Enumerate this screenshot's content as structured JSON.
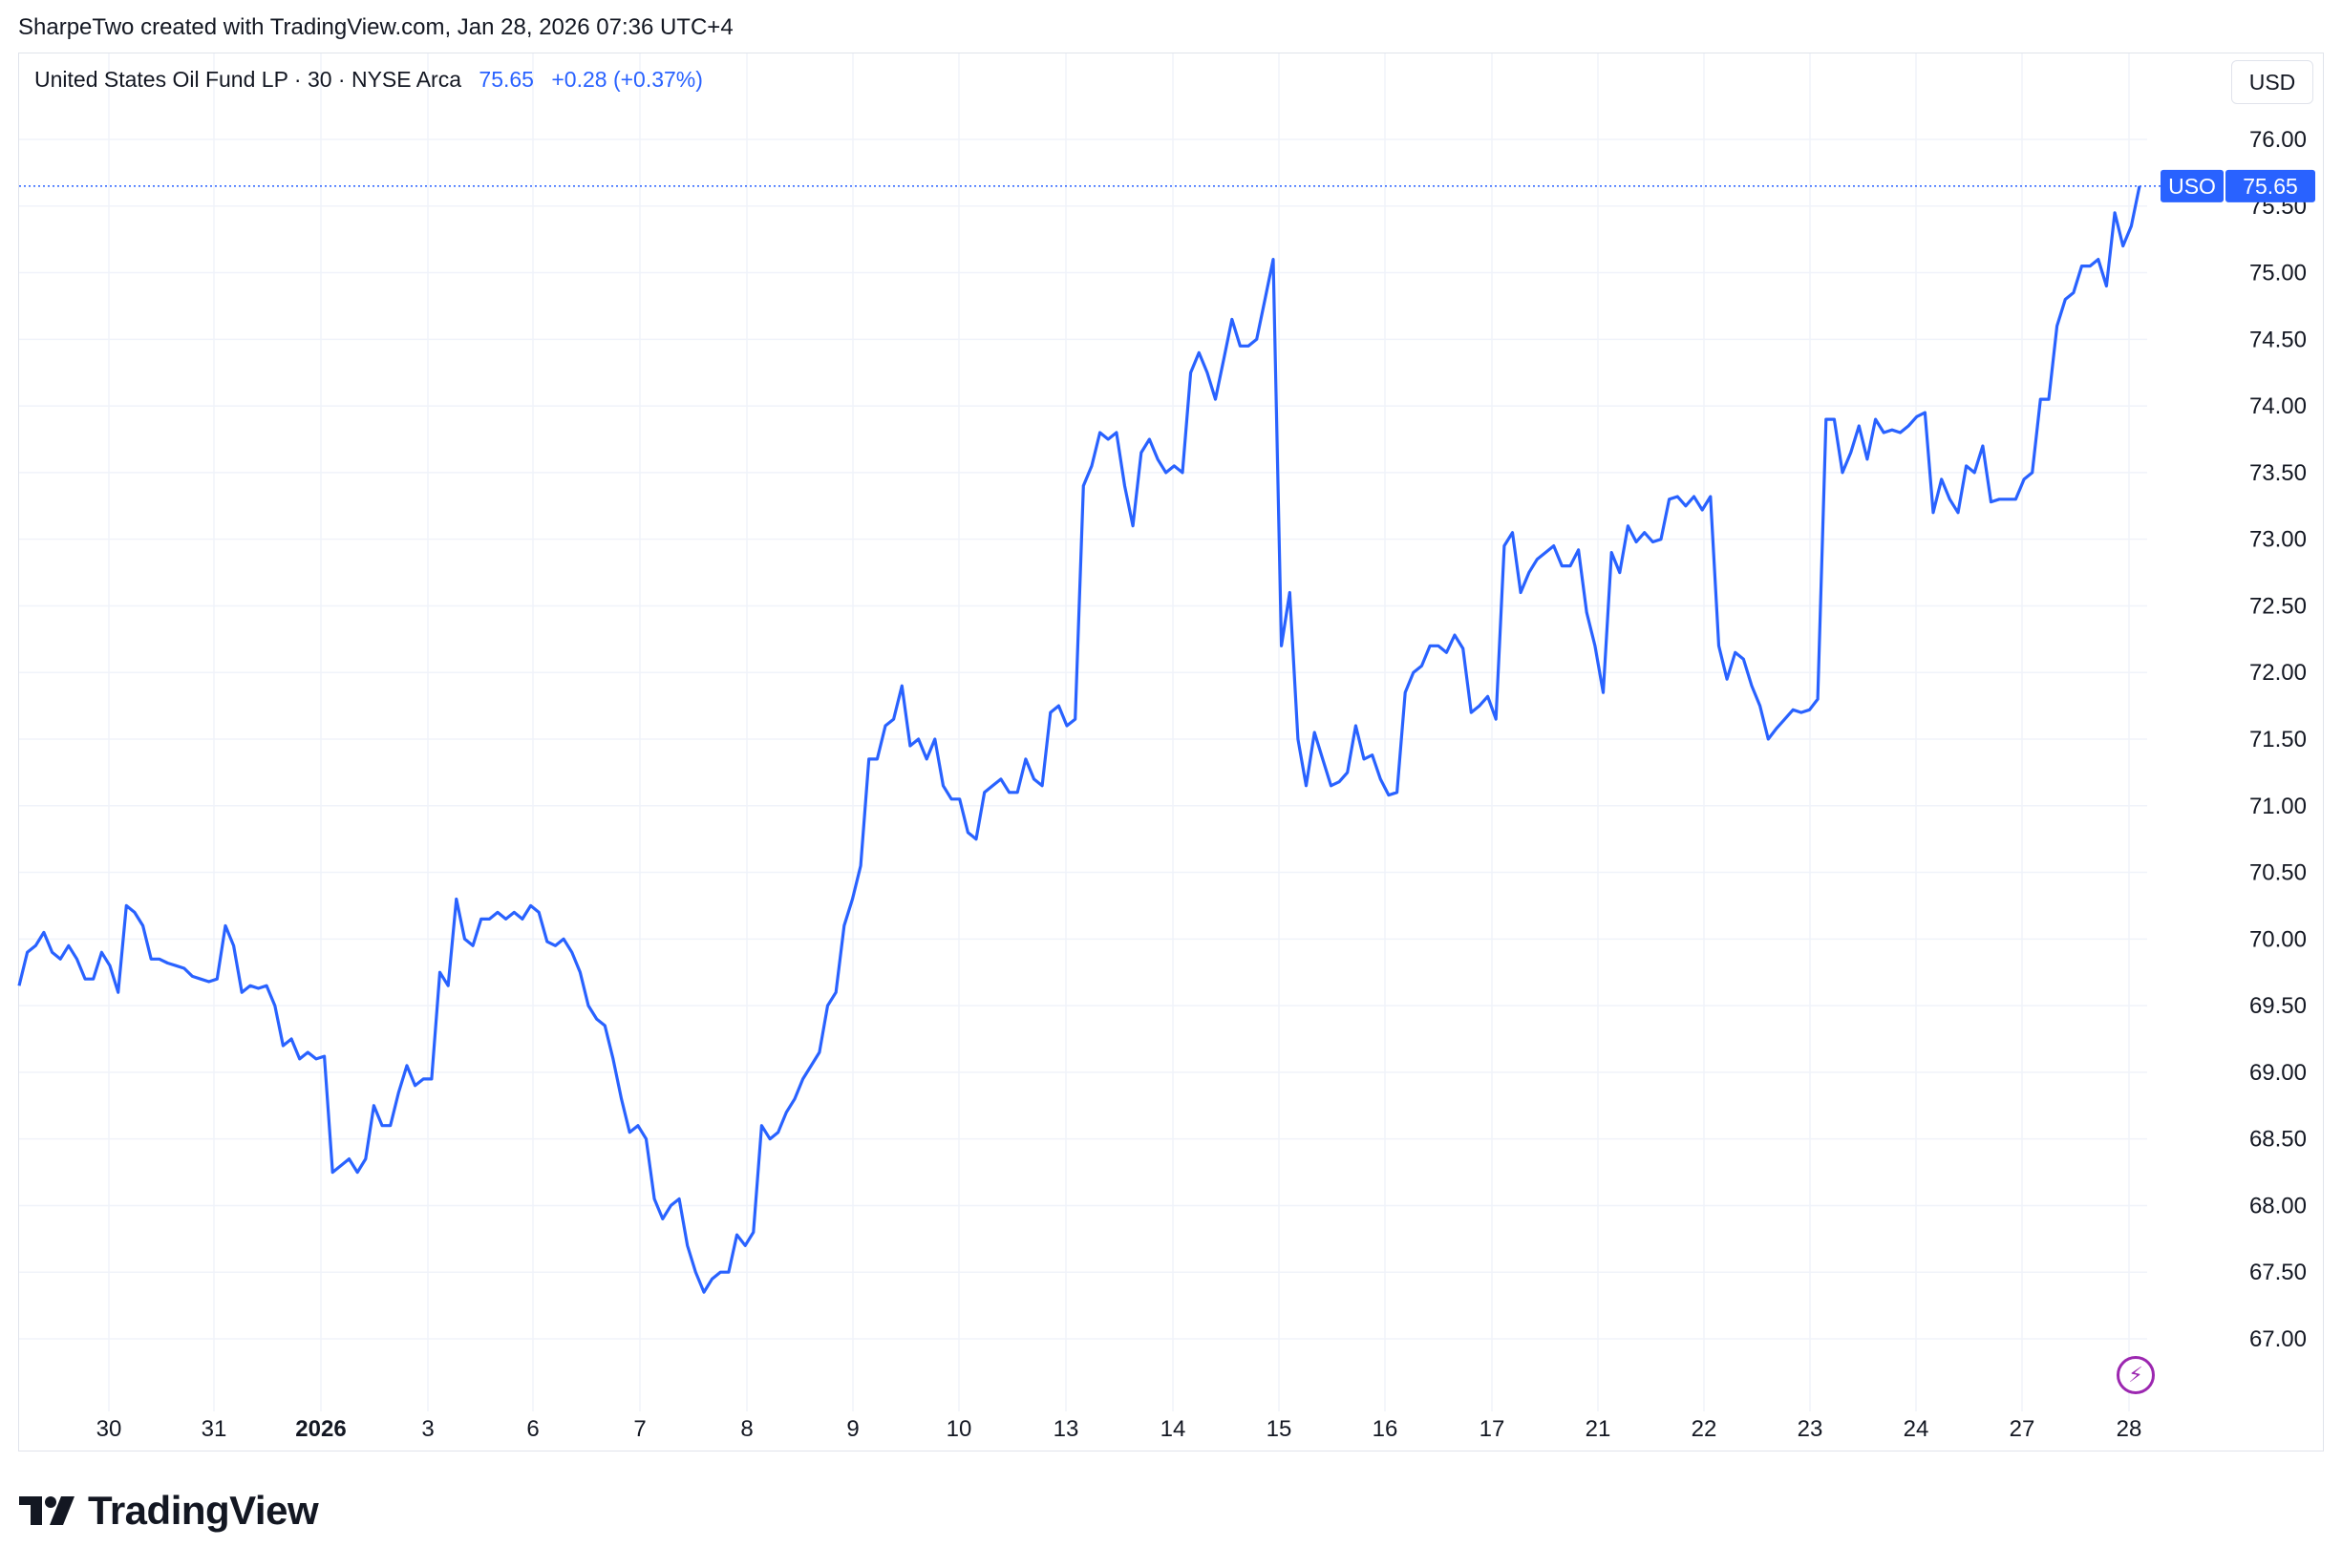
{
  "caption": "SharpeTwo created with TradingView.com, Jan 28, 2026 07:36 UTC+4",
  "legend": {
    "symbol_text": "United States Oil Fund LP · 30 · NYSE Arca",
    "last": "75.65",
    "change": "+0.28 (+0.37%)"
  },
  "currency_button": "USD",
  "price_tag": {
    "ticker": "USO",
    "value": "75.65"
  },
  "footer": {
    "brand": "TradingView"
  },
  "colors": {
    "line": "#2962ff",
    "grid": "#f0f3fa",
    "text": "#131722",
    "accent": "#9c27b0"
  },
  "chart_data": {
    "type": "line",
    "title": "",
    "xlabel": "",
    "ylabel": "",
    "ylim": [
      66.55,
      76.4
    ],
    "y_ticks": [
      "67.00",
      "67.50",
      "68.00",
      "68.50",
      "69.00",
      "69.50",
      "70.00",
      "70.50",
      "71.00",
      "71.50",
      "72.00",
      "72.50",
      "73.00",
      "73.50",
      "74.00",
      "74.50",
      "75.00",
      "75.50",
      "76.00"
    ],
    "x_tick_labels": [
      "30",
      "31",
      "2026",
      "3",
      "6",
      "7",
      "8",
      "9",
      "10",
      "13",
      "14",
      "15",
      "16",
      "17",
      "21",
      "22",
      "23",
      "24",
      "27",
      "28"
    ],
    "grid": true,
    "series": [
      {
        "values": [
          69.65,
          69.9,
          69.95,
          70.05,
          69.9,
          69.85,
          69.95,
          69.85,
          69.7,
          69.7,
          69.9,
          69.8,
          69.6,
          70.25,
          70.2,
          70.1,
          69.85,
          69.85,
          69.82,
          69.8,
          69.78,
          69.72,
          69.7,
          69.68,
          69.7,
          70.1,
          69.95,
          69.6,
          69.65,
          69.63,
          69.65,
          69.5,
          69.2,
          69.25,
          69.1,
          69.15,
          69.1,
          69.12,
          68.25,
          68.3,
          68.35,
          68.25,
          68.35,
          68.75,
          68.6,
          68.6,
          68.85,
          69.05,
          68.9,
          68.95,
          68.95,
          69.75,
          69.65,
          70.3,
          70.0,
          69.95,
          70.15,
          70.15,
          70.2,
          70.15,
          70.2,
          70.15,
          70.25,
          70.2,
          69.98,
          69.95,
          70.0,
          69.9,
          69.75,
          69.5,
          69.4,
          69.35,
          69.1,
          68.8,
          68.55,
          68.6,
          68.5,
          68.05,
          67.9,
          68.0,
          68.05,
          67.7,
          67.5,
          67.35,
          67.45,
          67.5,
          67.5,
          67.78,
          67.7,
          67.8,
          68.6,
          68.5,
          68.55,
          68.7,
          68.8,
          68.95,
          69.05,
          69.15,
          69.5,
          69.6,
          70.1,
          70.3,
          70.55,
          71.35,
          71.35,
          71.6,
          71.65,
          71.9,
          71.45,
          71.5,
          71.35,
          71.5,
          71.15,
          71.05,
          71.05,
          70.8,
          70.75,
          71.1,
          71.15,
          71.2,
          71.1,
          71.1,
          71.35,
          71.2,
          71.15,
          71.7,
          71.75,
          71.6,
          71.65,
          73.4,
          73.55,
          73.8,
          73.75,
          73.8,
          73.4,
          73.1,
          73.65,
          73.75,
          73.6,
          73.5,
          73.55,
          73.5,
          74.25,
          74.4,
          74.25,
          74.05,
          74.35,
          74.65,
          74.45,
          74.45,
          74.5,
          74.8,
          75.1,
          72.2,
          72.6,
          71.5,
          71.15,
          71.55,
          71.35,
          71.15,
          71.18,
          71.25,
          71.6,
          71.35,
          71.38,
          71.2,
          71.08,
          71.1,
          71.85,
          72.0,
          72.05,
          72.2,
          72.2,
          72.15,
          72.28,
          72.18,
          71.7,
          71.75,
          71.82,
          71.65,
          72.95,
          73.05,
          72.6,
          72.75,
          72.85,
          72.9,
          72.95,
          72.8,
          72.8,
          72.92,
          72.45,
          72.2,
          71.85,
          72.9,
          72.75,
          73.1,
          72.98,
          73.05,
          72.98,
          73.0,
          73.3,
          73.32,
          73.25,
          73.32,
          73.22,
          73.32,
          72.2,
          71.95,
          72.15,
          72.1,
          71.9,
          71.75,
          71.5,
          71.58,
          71.65,
          71.72,
          71.7,
          71.72,
          71.8,
          73.9,
          73.9,
          73.5,
          73.65,
          73.85,
          73.6,
          73.9,
          73.8,
          73.82,
          73.8,
          73.85,
          73.92,
          73.95,
          73.2,
          73.45,
          73.3,
          73.2,
          73.55,
          73.5,
          73.7,
          73.28,
          73.3,
          73.3,
          73.3,
          73.45,
          73.5,
          74.05,
          74.05,
          74.6,
          74.8,
          74.85,
          75.05,
          75.05,
          75.1,
          74.9,
          75.45,
          75.2,
          75.35,
          75.65
        ]
      }
    ]
  }
}
